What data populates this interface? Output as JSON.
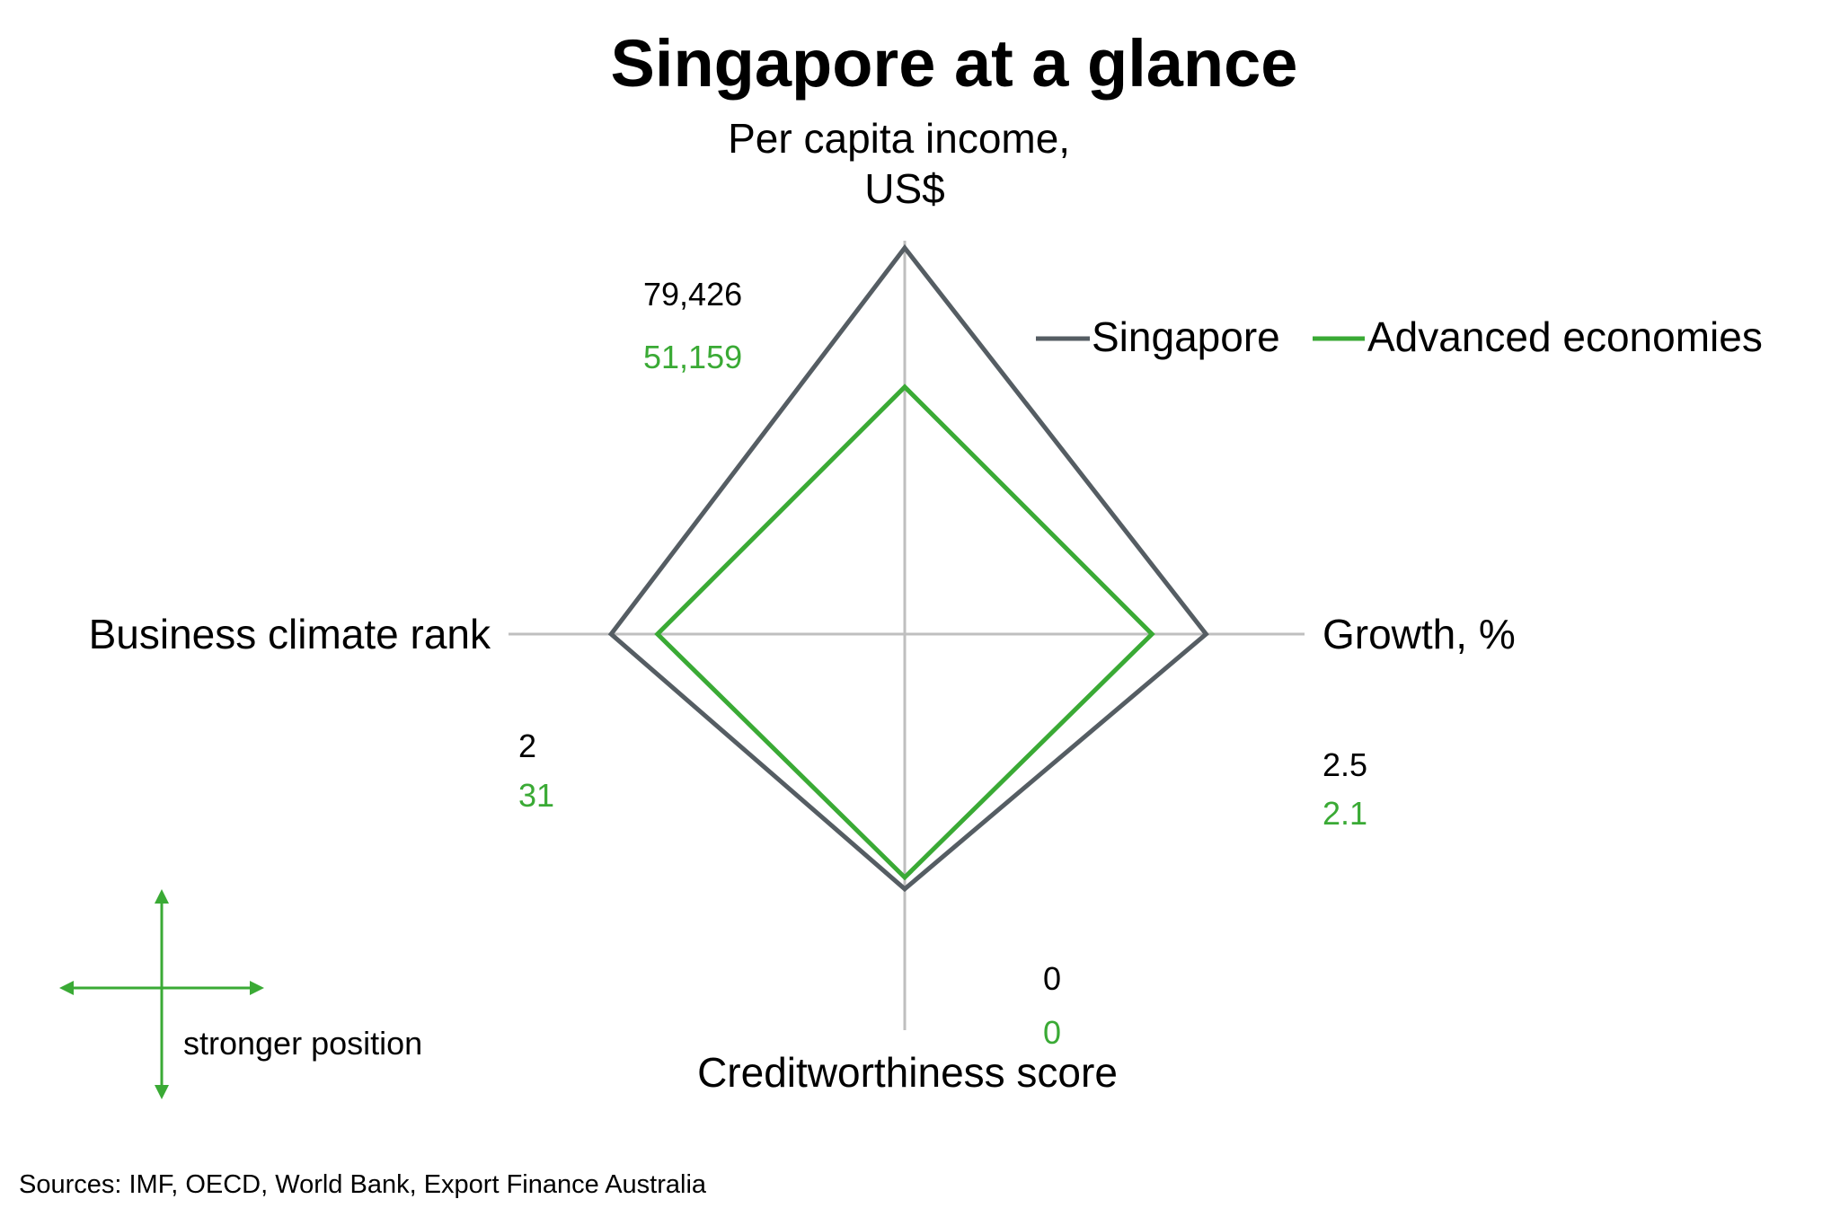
{
  "chart_data": {
    "type": "radar",
    "title": "Singapore at a glance",
    "axes": [
      {
        "key": "income",
        "label_lines": [
          "Per capita income,",
          "US$"
        ]
      },
      {
        "key": "growth",
        "label_lines": [
          "Growth, %"
        ]
      },
      {
        "key": "credit",
        "label_lines": [
          "Creditworthiness score"
        ]
      },
      {
        "key": "business",
        "label_lines": [
          "Business climate rank"
        ]
      }
    ],
    "series": [
      {
        "name": "Singapore",
        "color": "#555d63",
        "values": {
          "income": 79426,
          "growth": 2.5,
          "credit": 0,
          "business": 2
        },
        "labels": {
          "income": "79,426",
          "growth": "2.5",
          "credit": "0",
          "business": "2"
        },
        "plot_fraction": {
          "income": 1.0,
          "growth": 0.78,
          "credit": 0.66,
          "business": 0.76
        }
      },
      {
        "name": "Advanced economies",
        "color": "#3aaa35",
        "values": {
          "income": 51159,
          "growth": 2.1,
          "credit": 0,
          "business": 31
        },
        "labels": {
          "income": "51,159",
          "growth": "2.1",
          "credit": "0",
          "business": "31"
        },
        "plot_fraction": {
          "income": 0.64,
          "growth": 0.64,
          "credit": 0.63,
          "business": 0.64
        }
      }
    ],
    "legend_position": "top-right",
    "key_label": "stronger position",
    "source": "Sources: IMF, OECD, World Bank, Export Finance Australia"
  }
}
